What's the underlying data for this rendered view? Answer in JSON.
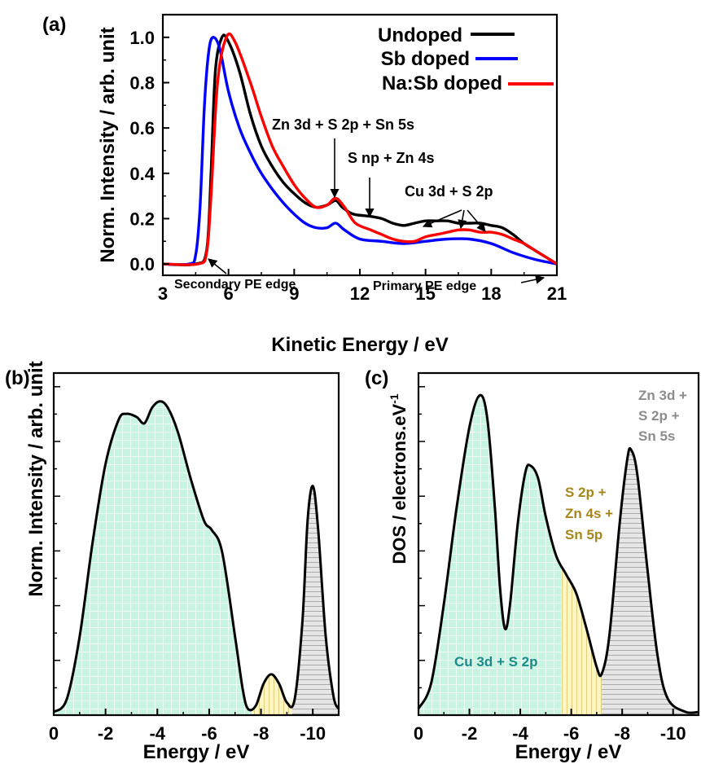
{
  "panels": {
    "a": "(a)",
    "b": "(b)",
    "c": "(c)"
  },
  "chart_data": [
    {
      "panel": "(a)",
      "type": "line",
      "xlabel": "Kinetic Energy / eV",
      "ylabel": "Norm. Intensity / arb. unit",
      "xlim": [
        3,
        21
      ],
      "ylim": [
        -0.05,
        1.1
      ],
      "xticks": [
        "3",
        "6",
        "9",
        "12",
        "15",
        "18",
        "21"
      ],
      "yticks": [
        "0.0",
        "0.2",
        "0.4",
        "0.6",
        "0.8",
        "1.0"
      ],
      "legend_position": "top-right",
      "series": [
        {
          "name": "Undoped",
          "color": "#000000",
          "points": [
            [
              3,
              0
            ],
            [
              4.5,
              0
            ],
            [
              5.0,
              0.06
            ],
            [
              5.2,
              0.4
            ],
            [
              5.4,
              0.85
            ],
            [
              5.7,
              1.0
            ],
            [
              6.0,
              0.98
            ],
            [
              6.5,
              0.85
            ],
            [
              7.0,
              0.66
            ],
            [
              7.5,
              0.52
            ],
            [
              8.0,
              0.43
            ],
            [
              8.5,
              0.36
            ],
            [
              9.0,
              0.31
            ],
            [
              9.5,
              0.27
            ],
            [
              10.0,
              0.25
            ],
            [
              10.5,
              0.26
            ],
            [
              10.9,
              0.28
            ],
            [
              11.2,
              0.25
            ],
            [
              11.7,
              0.22
            ],
            [
              12.5,
              0.21
            ],
            [
              13.0,
              0.2
            ],
            [
              13.5,
              0.18
            ],
            [
              14.0,
              0.17
            ],
            [
              14.5,
              0.18
            ],
            [
              15.0,
              0.19
            ],
            [
              15.5,
              0.19
            ],
            [
              16.0,
              0.19
            ],
            [
              16.5,
              0.18
            ],
            [
              17.0,
              0.18
            ],
            [
              17.5,
              0.18
            ],
            [
              18.0,
              0.17
            ],
            [
              18.5,
              0.16
            ],
            [
              19.0,
              0.13
            ],
            [
              19.5,
              0.09
            ],
            [
              20.0,
              0.06
            ],
            [
              20.5,
              0.03
            ],
            [
              21,
              0
            ]
          ]
        },
        {
          "name": "Sb doped",
          "color": "#0000ff",
          "points": [
            [
              3,
              0
            ],
            [
              4.2,
              0
            ],
            [
              4.5,
              0.04
            ],
            [
              4.7,
              0.25
            ],
            [
              4.9,
              0.7
            ],
            [
              5.1,
              0.94
            ],
            [
              5.3,
              1.0
            ],
            [
              5.6,
              0.95
            ],
            [
              6.0,
              0.76
            ],
            [
              6.5,
              0.6
            ],
            [
              7.0,
              0.49
            ],
            [
              7.5,
              0.4
            ],
            [
              8.0,
              0.33
            ],
            [
              8.5,
              0.27
            ],
            [
              9.0,
              0.22
            ],
            [
              9.5,
              0.18
            ],
            [
              10.0,
              0.16
            ],
            [
              10.5,
              0.16
            ],
            [
              10.9,
              0.18
            ],
            [
              11.3,
              0.15
            ],
            [
              12.0,
              0.11
            ],
            [
              13.0,
              0.1
            ],
            [
              14.0,
              0.09
            ],
            [
              15.0,
              0.1
            ],
            [
              16.0,
              0.11
            ],
            [
              17.0,
              0.11
            ],
            [
              18.0,
              0.09
            ],
            [
              19.0,
              0.05
            ],
            [
              20.0,
              0.02
            ],
            [
              21,
              0
            ]
          ]
        },
        {
          "name": "Na:Sb doped",
          "color": "#ff0000",
          "points": [
            [
              3,
              0
            ],
            [
              4.6,
              0
            ],
            [
              5.0,
              0.05
            ],
            [
              5.2,
              0.3
            ],
            [
              5.5,
              0.8
            ],
            [
              5.9,
              1.0
            ],
            [
              6.3,
              0.98
            ],
            [
              7.0,
              0.8
            ],
            [
              7.5,
              0.65
            ],
            [
              8.0,
              0.52
            ],
            [
              8.5,
              0.43
            ],
            [
              9.0,
              0.35
            ],
            [
              9.5,
              0.29
            ],
            [
              10.0,
              0.25
            ],
            [
              10.5,
              0.26
            ],
            [
              10.9,
              0.29
            ],
            [
              11.3,
              0.25
            ],
            [
              11.8,
              0.18
            ],
            [
              12.5,
              0.15
            ],
            [
              13.0,
              0.13
            ],
            [
              13.5,
              0.11
            ],
            [
              14.0,
              0.1
            ],
            [
              14.5,
              0.1
            ],
            [
              15.0,
              0.12
            ],
            [
              15.5,
              0.13
            ],
            [
              16.0,
              0.14
            ],
            [
              16.5,
              0.15
            ],
            [
              17.0,
              0.15
            ],
            [
              17.5,
              0.14
            ],
            [
              18.0,
              0.14
            ],
            [
              18.5,
              0.13
            ],
            [
              19.0,
              0.11
            ],
            [
              19.5,
              0.09
            ],
            [
              20.0,
              0.06
            ],
            [
              20.5,
              0.03
            ],
            [
              21,
              0
            ]
          ]
        }
      ],
      "annotations": [
        {
          "text": "Zn 3d + S 2p + Sn 5s",
          "x": 10.7,
          "y": 0.6,
          "arrow_to": [
            11.0,
            0.31
          ]
        },
        {
          "text": "S np + Zn 4s",
          "x": 12.2,
          "y": 0.46,
          "arrow_to": [
            12.5,
            0.23
          ]
        },
        {
          "text": "Cu 3d + S 2p",
          "x": 16.3,
          "y": 0.32,
          "arrow_to": [
            [
              14.8,
              0.21
            ],
            [
              16.8,
              0.17
            ],
            [
              17.8,
              0.15
            ]
          ]
        },
        {
          "text": "Secondary PE edge",
          "x": 3.5,
          "y": -0.05,
          "arrow_from": [
            6.0,
            0.08
          ],
          "arrow_to": [
            5.1,
            0.02
          ]
        },
        {
          "text": "Primary PE edge",
          "x": 16.2,
          "y": -0.05,
          "arrow_from": [
            19.9,
            -0.01
          ],
          "arrow_to": [
            20.9,
            0.005
          ]
        }
      ]
    },
    {
      "panel": "(b)",
      "type": "area",
      "xlabel": "Energy / eV",
      "ylabel": "Norm. Intensity / arb. unit",
      "xlim": [
        0,
        -11
      ],
      "ylim": [
        0,
        1.09
      ],
      "xticks": [
        "0",
        "-2",
        "-4",
        "-6",
        "-8",
        "-10"
      ],
      "points": [
        [
          0,
          0.01
        ],
        [
          -0.5,
          0.05
        ],
        [
          -1,
          0.25
        ],
        [
          -1.5,
          0.55
        ],
        [
          -2,
          0.8
        ],
        [
          -2.5,
          0.94
        ],
        [
          -2.8,
          0.96
        ],
        [
          -3.2,
          0.95
        ],
        [
          -3.5,
          0.93
        ],
        [
          -3.8,
          0.98
        ],
        [
          -4.1,
          1.0
        ],
        [
          -4.4,
          0.98
        ],
        [
          -4.8,
          0.9
        ],
        [
          -5.3,
          0.75
        ],
        [
          -5.8,
          0.62
        ],
        [
          -6.1,
          0.59
        ],
        [
          -6.5,
          0.52
        ],
        [
          -7.0,
          0.25
        ],
        [
          -7.3,
          0.08
        ],
        [
          -7.5,
          0.02
        ],
        [
          -7.8,
          0.03
        ],
        [
          -8.1,
          0.1
        ],
        [
          -8.4,
          0.13
        ],
        [
          -8.7,
          0.1
        ],
        [
          -9.0,
          0.04
        ],
        [
          -9.3,
          0.05
        ],
        [
          -9.6,
          0.3
        ],
        [
          -9.8,
          0.62
        ],
        [
          -10.0,
          0.73
        ],
        [
          -10.2,
          0.6
        ],
        [
          -10.5,
          0.25
        ],
        [
          -10.8,
          0.06
        ],
        [
          -11,
          0.02
        ]
      ],
      "regions": [
        {
          "from": 0,
          "to": -7.65,
          "fill": "#c8f5e1"
        },
        {
          "from": -7.65,
          "to": -9.2,
          "fill": "#fdf5c4"
        },
        {
          "from": -9.2,
          "to": -11,
          "fill": "#e4e4e4"
        }
      ]
    },
    {
      "panel": "(c)",
      "type": "area",
      "xlabel": "Energy / eV",
      "ylabel": "DOS / electrons.eV",
      "ylabel_superscript": "-1",
      "xlim": [
        0,
        -11
      ],
      "ylim": [
        0,
        1.07
      ],
      "xticks": [
        "0",
        "-2",
        "-4",
        "-6",
        "-8",
        "-10"
      ],
      "points": [
        [
          0,
          0.02
        ],
        [
          -0.5,
          0.1
        ],
        [
          -1.0,
          0.35
        ],
        [
          -1.5,
          0.65
        ],
        [
          -2.0,
          0.9
        ],
        [
          -2.4,
          1.0
        ],
        [
          -2.7,
          0.93
        ],
        [
          -3.0,
          0.65
        ],
        [
          -3.2,
          0.4
        ],
        [
          -3.4,
          0.27
        ],
        [
          -3.6,
          0.35
        ],
        [
          -3.9,
          0.6
        ],
        [
          -4.2,
          0.76
        ],
        [
          -4.4,
          0.78
        ],
        [
          -4.7,
          0.74
        ],
        [
          -5.0,
          0.62
        ],
        [
          -5.4,
          0.5
        ],
        [
          -5.8,
          0.44
        ],
        [
          -6.2,
          0.38
        ],
        [
          -6.6,
          0.27
        ],
        [
          -7.0,
          0.15
        ],
        [
          -7.2,
          0.13
        ],
        [
          -7.5,
          0.25
        ],
        [
          -7.9,
          0.6
        ],
        [
          -8.2,
          0.8
        ],
        [
          -8.35,
          0.83
        ],
        [
          -8.6,
          0.75
        ],
        [
          -9.0,
          0.45
        ],
        [
          -9.4,
          0.18
        ],
        [
          -9.8,
          0.05
        ],
        [
          -10.5,
          0.01
        ],
        [
          -11,
          0.01
        ]
      ],
      "regions": [
        {
          "from": 0,
          "to": -5.6,
          "fill": "#c8f5e1"
        },
        {
          "from": -5.6,
          "to": -7.2,
          "fill": "#fdf5c4"
        },
        {
          "from": -7.2,
          "to": -11,
          "fill": "#e4e4e4"
        }
      ],
      "annotations": [
        {
          "text": "Cu 3d + S 2p",
          "color": "#1a8a8a",
          "lines": [
            "Cu 3d + S 2p"
          ]
        },
        {
          "text": "S 2p + Zn 4s + Sn 5p",
          "color": "#a8861a",
          "lines": [
            "S 2p +",
            "Zn 4s +",
            "Sn 5p"
          ]
        },
        {
          "text": "Zn 3d + S 2p + Sn 5s",
          "color": "#8c8c8c",
          "lines": [
            "Zn 3d +",
            "S 2p +",
            "Sn 5s"
          ]
        }
      ]
    }
  ]
}
